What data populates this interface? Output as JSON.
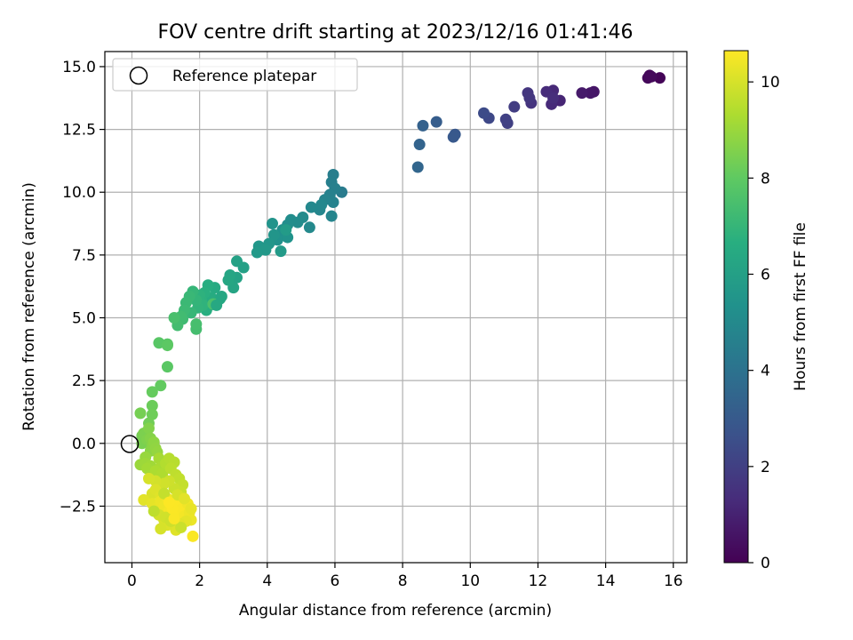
{
  "chart_data": {
    "type": "scatter",
    "title": "FOV centre drift starting at 2023/12/16 01:41:46",
    "xlabel": "Angular distance from reference (arcmin)",
    "ylabel": "Rotation from reference (arcmin)",
    "xlim": [
      -0.8,
      16.4
    ],
    "ylim": [
      -4.75,
      15.6
    ],
    "xticks": [
      0,
      2,
      4,
      6,
      8,
      10,
      12,
      14,
      16
    ],
    "yticks": [
      -2.5,
      0.0,
      2.5,
      5.0,
      7.5,
      10.0,
      12.5,
      15.0
    ],
    "ytick_labels": [
      "−2.5",
      "0.0",
      "2.5",
      "5.0",
      "7.5",
      "10.0",
      "12.5",
      "15.0"
    ],
    "grid": true,
    "legend": {
      "position": "top-left",
      "label": "Reference platepar"
    },
    "reference_point": {
      "x": 0,
      "y": 0
    },
    "colorbar": {
      "label": "Hours from first FF file",
      "colormap": "viridis",
      "range": [
        0,
        10.65
      ],
      "ticks": [
        0,
        2,
        4,
        6,
        8,
        10
      ]
    },
    "points": [
      {
        "x": 15.6,
        "y": 14.55,
        "c": 0.1
      },
      {
        "x": 15.3,
        "y": 14.65,
        "c": 0.15
      },
      {
        "x": 15.25,
        "y": 14.55,
        "c": 0.2
      },
      {
        "x": 15.35,
        "y": 14.6,
        "c": 0.25
      },
      {
        "x": 13.65,
        "y": 14.0,
        "c": 0.6
      },
      {
        "x": 13.55,
        "y": 13.95,
        "c": 0.65
      },
      {
        "x": 13.3,
        "y": 13.95,
        "c": 0.75
      },
      {
        "x": 12.65,
        "y": 13.65,
        "c": 1.1
      },
      {
        "x": 12.45,
        "y": 14.05,
        "c": 1.2
      },
      {
        "x": 12.4,
        "y": 13.5,
        "c": 1.25
      },
      {
        "x": 12.25,
        "y": 14.0,
        "c": 1.3
      },
      {
        "x": 12.45,
        "y": 13.75,
        "c": 1.35
      },
      {
        "x": 11.8,
        "y": 13.55,
        "c": 1.6
      },
      {
        "x": 11.7,
        "y": 13.95,
        "c": 1.65
      },
      {
        "x": 11.75,
        "y": 13.75,
        "c": 1.7
      },
      {
        "x": 11.3,
        "y": 13.4,
        "c": 1.9
      },
      {
        "x": 11.1,
        "y": 12.75,
        "c": 2.0
      },
      {
        "x": 11.05,
        "y": 12.9,
        "c": 2.05
      },
      {
        "x": 10.55,
        "y": 12.95,
        "c": 2.3
      },
      {
        "x": 10.4,
        "y": 13.15,
        "c": 2.4
      },
      {
        "x": 9.55,
        "y": 12.3,
        "c": 2.9
      },
      {
        "x": 9.5,
        "y": 12.2,
        "c": 2.95
      },
      {
        "x": 9.0,
        "y": 12.8,
        "c": 3.1
      },
      {
        "x": 8.6,
        "y": 12.65,
        "c": 3.3
      },
      {
        "x": 8.5,
        "y": 11.9,
        "c": 3.4
      },
      {
        "x": 8.45,
        "y": 11.0,
        "c": 3.5
      },
      {
        "x": 6.2,
        "y": 10.0,
        "c": 4.4
      },
      {
        "x": 5.95,
        "y": 10.7,
        "c": 4.5
      },
      {
        "x": 5.9,
        "y": 10.4,
        "c": 4.55
      },
      {
        "x": 6.0,
        "y": 10.15,
        "c": 4.6
      },
      {
        "x": 5.85,
        "y": 9.9,
        "c": 4.65
      },
      {
        "x": 5.95,
        "y": 9.6,
        "c": 4.7
      },
      {
        "x": 5.7,
        "y": 9.7,
        "c": 4.75
      },
      {
        "x": 5.9,
        "y": 9.05,
        "c": 4.8
      },
      {
        "x": 5.55,
        "y": 9.3,
        "c": 4.85
      },
      {
        "x": 5.6,
        "y": 9.5,
        "c": 4.9
      },
      {
        "x": 5.3,
        "y": 9.4,
        "c": 4.95
      },
      {
        "x": 5.25,
        "y": 8.6,
        "c": 5.0
      },
      {
        "x": 5.05,
        "y": 9.0,
        "c": 5.05
      },
      {
        "x": 4.9,
        "y": 8.8,
        "c": 5.1
      },
      {
        "x": 4.7,
        "y": 8.9,
        "c": 5.15
      },
      {
        "x": 4.6,
        "y": 8.7,
        "c": 5.2
      },
      {
        "x": 4.45,
        "y": 8.5,
        "c": 5.25
      },
      {
        "x": 4.4,
        "y": 8.3,
        "c": 5.3
      },
      {
        "x": 4.3,
        "y": 8.1,
        "c": 5.35
      },
      {
        "x": 4.6,
        "y": 8.2,
        "c": 5.4
      },
      {
        "x": 4.15,
        "y": 8.75,
        "c": 5.45
      },
      {
        "x": 4.2,
        "y": 8.3,
        "c": 5.5
      },
      {
        "x": 4.05,
        "y": 7.95,
        "c": 5.55
      },
      {
        "x": 3.75,
        "y": 7.85,
        "c": 5.6
      },
      {
        "x": 3.95,
        "y": 7.7,
        "c": 5.65
      },
      {
        "x": 3.7,
        "y": 7.6,
        "c": 5.7
      },
      {
        "x": 4.4,
        "y": 7.65,
        "c": 5.75
      },
      {
        "x": 4.55,
        "y": 8.5,
        "c": 5.8
      },
      {
        "x": 3.3,
        "y": 7.0,
        "c": 6.0
      },
      {
        "x": 3.1,
        "y": 7.25,
        "c": 6.05
      },
      {
        "x": 3.1,
        "y": 6.6,
        "c": 6.1
      },
      {
        "x": 2.95,
        "y": 6.45,
        "c": 6.15
      },
      {
        "x": 3.0,
        "y": 6.2,
        "c": 6.2
      },
      {
        "x": 2.9,
        "y": 6.7,
        "c": 6.25
      },
      {
        "x": 2.85,
        "y": 6.5,
        "c": 6.3
      },
      {
        "x": 2.6,
        "y": 5.75,
        "c": 6.4
      },
      {
        "x": 2.45,
        "y": 6.2,
        "c": 6.45
      },
      {
        "x": 2.35,
        "y": 5.8,
        "c": 6.5
      },
      {
        "x": 2.3,
        "y": 5.5,
        "c": 6.55
      },
      {
        "x": 2.25,
        "y": 6.3,
        "c": 6.6
      },
      {
        "x": 2.2,
        "y": 5.3,
        "c": 6.65
      },
      {
        "x": 2.15,
        "y": 6.0,
        "c": 6.7
      },
      {
        "x": 2.05,
        "y": 5.7,
        "c": 6.75
      },
      {
        "x": 2.0,
        "y": 5.9,
        "c": 6.8
      },
      {
        "x": 2.1,
        "y": 5.5,
        "c": 6.85
      },
      {
        "x": 1.95,
        "y": 5.4,
        "c": 6.9
      },
      {
        "x": 1.9,
        "y": 5.7,
        "c": 6.95
      },
      {
        "x": 1.8,
        "y": 6.05,
        "c": 7.0
      },
      {
        "x": 1.75,
        "y": 5.2,
        "c": 7.05
      },
      {
        "x": 1.7,
        "y": 5.85,
        "c": 7.1
      },
      {
        "x": 1.6,
        "y": 5.6,
        "c": 7.15
      },
      {
        "x": 1.55,
        "y": 5.3,
        "c": 7.2
      },
      {
        "x": 1.5,
        "y": 4.95,
        "c": 7.25
      },
      {
        "x": 1.45,
        "y": 5.05,
        "c": 7.3
      },
      {
        "x": 1.35,
        "y": 4.7,
        "c": 7.35
      },
      {
        "x": 1.9,
        "y": 4.55,
        "c": 7.4
      },
      {
        "x": 1.9,
        "y": 4.75,
        "c": 7.45
      },
      {
        "x": 1.25,
        "y": 5.0,
        "c": 7.5
      },
      {
        "x": 2.4,
        "y": 5.55,
        "c": 7.55
      },
      {
        "x": 2.65,
        "y": 5.85,
        "c": 6.35
      },
      {
        "x": 2.5,
        "y": 5.5,
        "c": 6.4
      },
      {
        "x": 1.05,
        "y": 3.95,
        "c": 7.8
      },
      {
        "x": 0.8,
        "y": 4.0,
        "c": 7.85
      },
      {
        "x": 1.05,
        "y": 3.05,
        "c": 7.9
      },
      {
        "x": 1.05,
        "y": 3.9,
        "c": 7.95
      },
      {
        "x": 0.85,
        "y": 2.3,
        "c": 8.05
      },
      {
        "x": 0.6,
        "y": 2.05,
        "c": 8.1
      },
      {
        "x": 0.6,
        "y": 1.5,
        "c": 8.2
      },
      {
        "x": 0.6,
        "y": 1.15,
        "c": 8.25
      },
      {
        "x": 0.5,
        "y": 0.8,
        "c": 8.3
      },
      {
        "x": 0.3,
        "y": 0.3,
        "c": 8.35
      },
      {
        "x": 0.25,
        "y": 1.2,
        "c": 8.4
      },
      {
        "x": 0.3,
        "y": 0.0,
        "c": 8.45
      },
      {
        "x": 0.35,
        "y": 0.4,
        "c": 8.5
      },
      {
        "x": 0.45,
        "y": 0.15,
        "c": 8.55
      },
      {
        "x": 0.5,
        "y": 0.6,
        "c": 8.6
      },
      {
        "x": 0.55,
        "y": 0.2,
        "c": 8.65
      },
      {
        "x": 0.6,
        "y": -0.1,
        "c": 8.7
      },
      {
        "x": 0.55,
        "y": -0.3,
        "c": 8.75
      },
      {
        "x": 0.65,
        "y": 0.05,
        "c": 8.8
      },
      {
        "x": 0.7,
        "y": -0.2,
        "c": 8.85
      },
      {
        "x": 0.75,
        "y": -0.35,
        "c": 8.9
      },
      {
        "x": 0.4,
        "y": -0.55,
        "c": 8.95
      },
      {
        "x": 0.25,
        "y": -0.85,
        "c": 9.0
      },
      {
        "x": 0.4,
        "y": -0.8,
        "c": 9.05
      },
      {
        "x": 0.55,
        "y": -0.9,
        "c": 9.1
      },
      {
        "x": 0.45,
        "y": -1.0,
        "c": 9.15
      },
      {
        "x": 0.8,
        "y": -0.6,
        "c": 9.2
      },
      {
        "x": 0.85,
        "y": -0.95,
        "c": 9.25
      },
      {
        "x": 0.7,
        "y": -1.1,
        "c": 9.3
      },
      {
        "x": 0.9,
        "y": -1.2,
        "c": 9.35
      },
      {
        "x": 1.0,
        "y": -0.8,
        "c": 9.4
      },
      {
        "x": 1.1,
        "y": -0.6,
        "c": 9.45
      },
      {
        "x": 1.25,
        "y": -0.75,
        "c": 9.5
      },
      {
        "x": 1.15,
        "y": -1.0,
        "c": 9.55
      },
      {
        "x": 1.3,
        "y": -1.25,
        "c": 9.6
      },
      {
        "x": 1.4,
        "y": -1.4,
        "c": 9.65
      },
      {
        "x": 1.5,
        "y": -1.65,
        "c": 9.7
      },
      {
        "x": 1.45,
        "y": -1.95,
        "c": 9.75
      },
      {
        "x": 1.25,
        "y": -1.8,
        "c": 9.8
      },
      {
        "x": 1.1,
        "y": -1.5,
        "c": 9.85
      },
      {
        "x": 0.95,
        "y": -1.6,
        "c": 9.9
      },
      {
        "x": 0.7,
        "y": -1.5,
        "c": 9.95
      },
      {
        "x": 0.5,
        "y": -1.4,
        "c": 10.0
      },
      {
        "x": 0.6,
        "y": -2.0,
        "c": 10.05
      },
      {
        "x": 0.7,
        "y": -1.85,
        "c": 10.1
      },
      {
        "x": 0.85,
        "y": -2.1,
        "c": 10.15
      },
      {
        "x": 0.35,
        "y": -2.25,
        "c": 10.2
      },
      {
        "x": 0.6,
        "y": -2.4,
        "c": 10.25
      },
      {
        "x": 0.75,
        "y": -2.55,
        "c": 10.3
      },
      {
        "x": 0.85,
        "y": -2.3,
        "c": 10.35
      },
      {
        "x": 0.95,
        "y": -2.5,
        "c": 10.4
      },
      {
        "x": 1.05,
        "y": -2.2,
        "c": 10.45
      },
      {
        "x": 1.1,
        "y": -2.7,
        "c": 10.5
      },
      {
        "x": 1.2,
        "y": -2.45,
        "c": 10.55
      },
      {
        "x": 1.3,
        "y": -2.8,
        "c": 10.6
      },
      {
        "x": 1.4,
        "y": -2.3,
        "c": 10.62
      },
      {
        "x": 1.5,
        "y": -2.6,
        "c": 10.58
      },
      {
        "x": 1.55,
        "y": -2.9,
        "c": 10.5
      },
      {
        "x": 1.65,
        "y": -2.4,
        "c": 10.45
      },
      {
        "x": 1.7,
        "y": -2.75,
        "c": 10.4
      },
      {
        "x": 1.75,
        "y": -3.05,
        "c": 10.35
      },
      {
        "x": 1.75,
        "y": -2.6,
        "c": 10.3
      },
      {
        "x": 1.6,
        "y": -3.1,
        "c": 10.25
      },
      {
        "x": 1.4,
        "y": -3.2,
        "c": 10.2
      },
      {
        "x": 1.3,
        "y": -3.45,
        "c": 10.15
      },
      {
        "x": 1.05,
        "y": -3.25,
        "c": 10.1
      },
      {
        "x": 0.95,
        "y": -3.05,
        "c": 10.05
      },
      {
        "x": 0.85,
        "y": -3.4,
        "c": 10.0
      },
      {
        "x": 0.8,
        "y": -2.85,
        "c": 9.95
      },
      {
        "x": 1.0,
        "y": -2.95,
        "c": 9.9
      },
      {
        "x": 1.15,
        "y": -3.1,
        "c": 9.85
      },
      {
        "x": 1.45,
        "y": -3.35,
        "c": 9.8
      },
      {
        "x": 1.8,
        "y": -3.7,
        "c": 10.6
      },
      {
        "x": 1.2,
        "y": -2.6,
        "c": 10.62
      },
      {
        "x": 1.35,
        "y": -2.05,
        "c": 10.0
      },
      {
        "x": 0.95,
        "y": -2.0,
        "c": 9.7
      },
      {
        "x": 0.65,
        "y": -2.7,
        "c": 9.6
      },
      {
        "x": 1.55,
        "y": -2.2,
        "c": 10.2
      },
      {
        "x": 1.1,
        "y": -2.35,
        "c": 10.64
      },
      {
        "x": 1.25,
        "y": -3.0,
        "c": 10.6
      }
    ]
  }
}
